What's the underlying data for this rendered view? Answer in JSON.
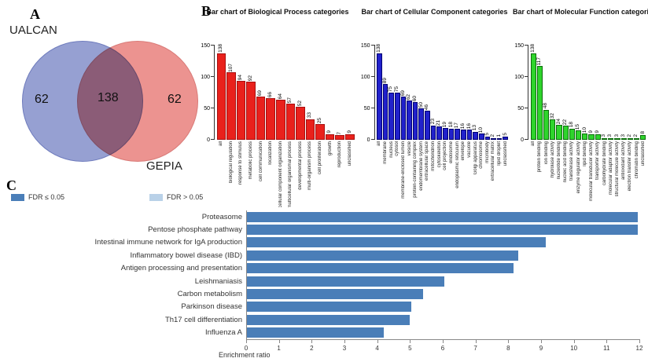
{
  "panels": {
    "a": "A",
    "b": "B",
    "c": "C"
  },
  "venn": {
    "left_label": "UALCAN",
    "right_label": "GEPIA",
    "left_count": "62",
    "overlap_count": "138",
    "right_count": "62",
    "left_color": "#96a0d2",
    "right_color": "#ec9390",
    "left_border": "#6f7cbd",
    "right_border": "#d97b78"
  },
  "chart_data": [
    {
      "type": "bar",
      "title": "Bar chart of Biological Process categories",
      "bar_color": "#e9211c",
      "bar_border": "#a80f0f",
      "ylim": [
        0,
        150
      ],
      "yticks": [
        0,
        50,
        100,
        150
      ],
      "grid": false,
      "categories": [
        "all",
        "biological regulation",
        "response to stimulus",
        "metabolic process",
        "cell communication",
        "localization",
        "cellular component organization",
        "multicellular organismal process",
        "developmental process",
        "multi-organism process",
        "cell proliferation",
        "growth",
        "reproduction",
        "unclassified"
      ],
      "values": [
        138,
        107,
        94,
        92,
        69,
        66,
        64,
        57,
        52,
        33,
        25,
        9,
        7,
        9
      ]
    },
    {
      "type": "bar",
      "title": "Bar chart of Cellular Component categories",
      "bar_color": "#2121cc",
      "bar_border": "#000070",
      "ylim": [
        0,
        150
      ],
      "yticks": [
        0,
        50,
        100,
        150
      ],
      "grid": false,
      "categories": [
        "all",
        "membrane",
        "nucleus",
        "cytosol",
        "membrane-enclosed lumen",
        "vesicle",
        "protein-containing complex",
        "endomembrane system",
        "extracellular space",
        "mitochondrion",
        "cytoskeleton",
        "cell projection",
        "endosome",
        "endoplasmic reticulum",
        "envelope",
        "vacuole",
        "Golgi apparatus",
        "chromosome",
        "microbody",
        "extracellular matrix",
        "lipid droplet",
        "unclassified"
      ],
      "values": [
        138,
        89,
        75,
        75,
        69,
        62,
        60,
        50,
        46,
        23,
        21,
        19,
        18,
        17,
        16,
        16,
        13,
        10,
        5,
        2,
        1,
        5
      ]
    },
    {
      "type": "bar",
      "title": "Bar chart of Molecular Function categories",
      "bar_color": "#2fd42c",
      "bar_border": "#0a6e0a",
      "ylim": [
        0,
        150
      ],
      "yticks": [
        0,
        50,
        100,
        150
      ],
      "grid": false,
      "categories": [
        "all",
        "protein binding",
        "ion binding",
        "hydrolase activity",
        "nucleotide binding",
        "nucleic acid binding",
        "transferase activity",
        "enzyme regulator activity",
        "lipid binding",
        "molecular transducer activity",
        "transporter activity",
        "carbohydrate binding",
        "molecular adaptor activity",
        "structural molecule activity",
        "antioxidant activity",
        "electron transfer activity",
        "chromatin binding",
        "unclassified"
      ],
      "values": [
        138,
        117,
        48,
        32,
        24,
        22,
        18,
        15,
        10,
        9,
        9,
        3,
        3,
        3,
        3,
        2,
        2,
        8
      ]
    },
    {
      "type": "barh",
      "title": "",
      "xlabel": "Enrichment ratio",
      "xlim": [
        0,
        12
      ],
      "xticks": [
        0,
        1,
        2,
        3,
        4,
        5,
        6,
        7,
        8,
        9,
        10,
        11,
        12
      ],
      "bar_color": "#4a7eb8",
      "legend": [
        {
          "label": "FDR ≤ 0.05",
          "color": "#4a7eb8"
        },
        {
          "label": "FDR > 0.05",
          "color": "#b9d1e8"
        }
      ],
      "legend_position": "top-left",
      "categories": [
        "Proteasome",
        "Pentose phosphate pathway",
        "Intestinal immune network for IgA production",
        "Inflammatory bowel disease (IBD)",
        "Antigen processing and presentation",
        "Leishmaniasis",
        "Carbon metabolism",
        "Parkinson disease",
        "Th17 cell differentiation",
        "Influenza A"
      ],
      "values": [
        11.95,
        11.95,
        9.15,
        8.3,
        8.15,
        6.05,
        5.4,
        5.05,
        5.0,
        4.2
      ],
      "fdr_class": [
        "le",
        "le",
        "le",
        "le",
        "le",
        "le",
        "le",
        "le",
        "le",
        "le"
      ]
    }
  ]
}
